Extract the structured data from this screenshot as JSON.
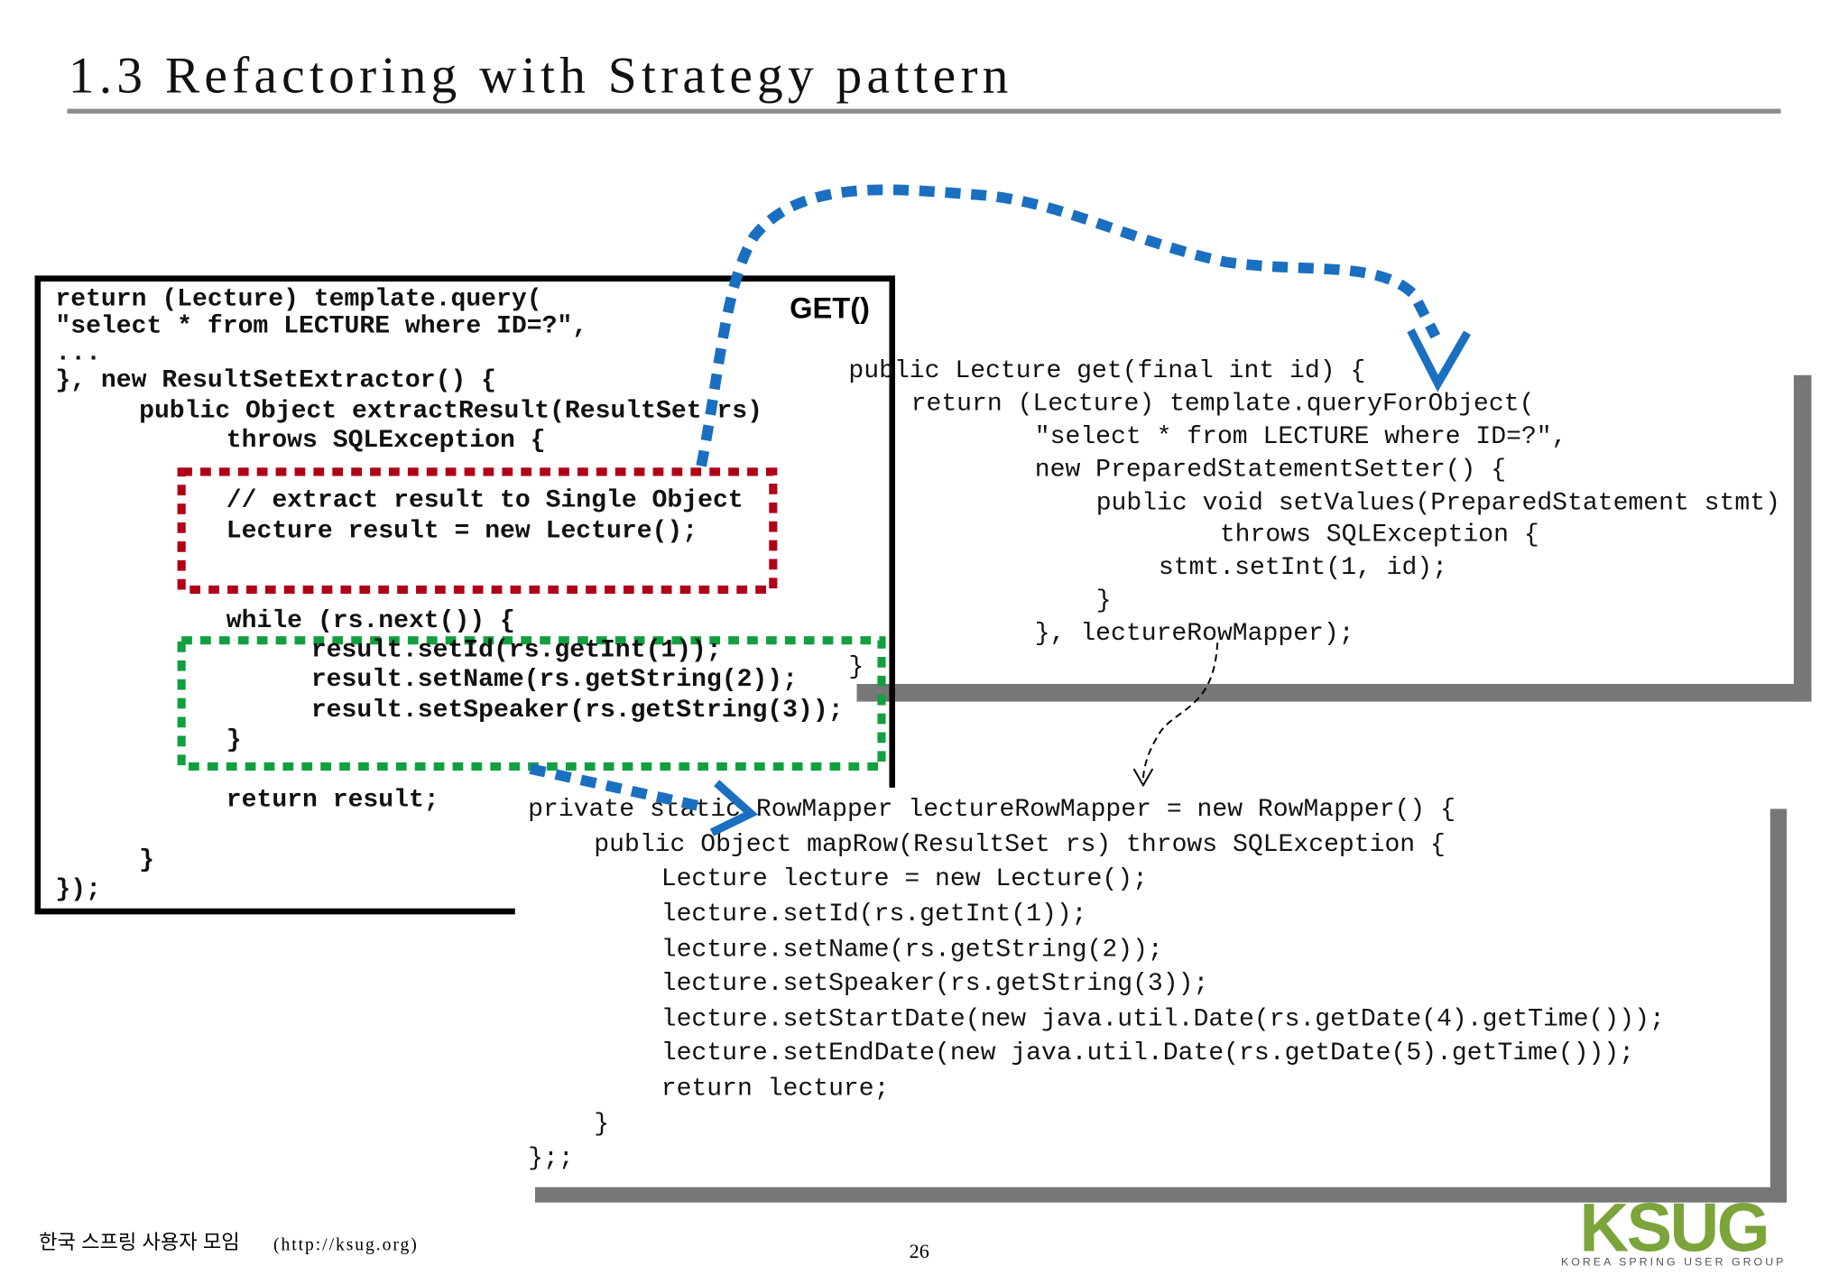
{
  "header": {
    "title": "1.3 Refactoring with Strategy pattern"
  },
  "left_code": {
    "label": "GET()",
    "lines": [
      "return (Lecture) template.query(",
      "\"select * from LECTURE where ID=?\",",
      "...",
      "}, new ResultSetExtractor() {",
      "public Object extractResult(ResultSet rs)",
      "throws SQLException {",
      "// extract result to Single Object",
      "Lecture result = new Lecture();",
      "while (rs.next()) {",
      "result.setId(rs.getInt(1));",
      "result.setName(rs.getString(2));",
      "result.setSpeaker(rs.getString(3));",
      "}",
      "return result;",
      "}",
      "});"
    ]
  },
  "get_method": {
    "lines": [
      "public Lecture get(final int id) {",
      "return (Lecture) template.queryForObject(",
      "\"select * from LECTURE where ID=?\",",
      "new PreparedStatementSetter() {",
      "public void setValues(PreparedStatement stmt)",
      "throws SQLException {",
      "stmt.setInt(1, id);",
      "}",
      "}, lectureRowMapper);",
      "}"
    ]
  },
  "row_mapper": {
    "lines": [
      "private static RowMapper lectureRowMapper = new RowMapper() {",
      "public Object mapRow(ResultSet rs) throws SQLException {",
      "Lecture lecture = new Lecture();",
      "lecture.setId(rs.getInt(1));",
      "lecture.setName(rs.getString(2));",
      "lecture.setSpeaker(rs.getString(3));",
      "lecture.setStartDate(new java.util.Date(rs.getDate(4).getTime()));",
      "lecture.setEndDate(new java.util.Date(rs.getDate(5).getTime()));",
      "return lecture;",
      "}",
      "};;"
    ]
  },
  "footer": {
    "org": "한국 스프링 사용자 모임",
    "url": "(http://ksug.org)",
    "page": "26",
    "logo": "KSUG",
    "logo_tagline": "KOREA SPRING USER GROUP"
  }
}
